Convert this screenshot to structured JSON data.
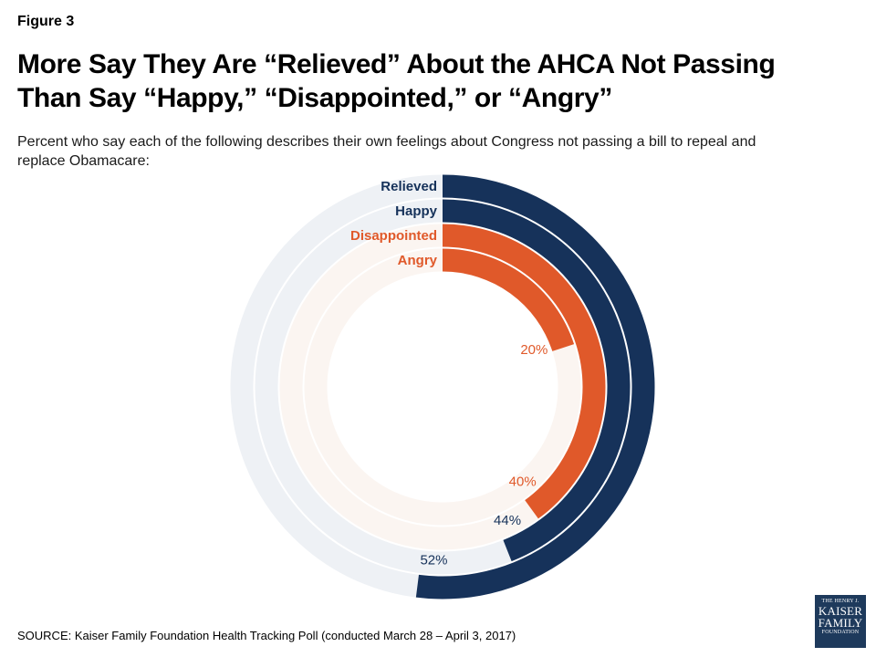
{
  "figure_label": "Figure 3",
  "title_line1": "More Say They Are “Relieved” About the AHCA Not Passing",
  "title_line2": "Than Say “Happy,” “Disappointed,” or “Angry”",
  "subtitle_line1": "Percent who say each of the following describes their own feelings about Congress not passing a bill to repeal and",
  "subtitle_line2": "replace Obamacare:",
  "source": "SOURCE: Kaiser Family Foundation Health Tracking Poll (conducted March 28 – April 3, 2017)",
  "logo": {
    "line1": "THE HENRY J.",
    "line2": "KAISER",
    "line3": "FAMILY",
    "line4": "FOUNDATION"
  },
  "colors": {
    "navy": "#16325a",
    "orange": "#e0592a",
    "navy_track": "#eef1f5",
    "orange_track": "#fbf5f1"
  },
  "chart_data": {
    "type": "radial-bar",
    "unit": "%",
    "max": 100,
    "series": [
      {
        "name": "Relieved",
        "value": 52,
        "label": "52%",
        "color": "#16325a",
        "track": "#eef1f5"
      },
      {
        "name": "Happy",
        "value": 44,
        "label": "44%",
        "color": "#16325a",
        "track": "#eef1f5"
      },
      {
        "name": "Disappointed",
        "value": 40,
        "label": "40%",
        "color": "#e0592a",
        "track": "#fbf5f1"
      },
      {
        "name": "Angry",
        "value": 20,
        "label": "20%",
        "color": "#e0592a",
        "track": "#fbf5f1"
      }
    ]
  }
}
